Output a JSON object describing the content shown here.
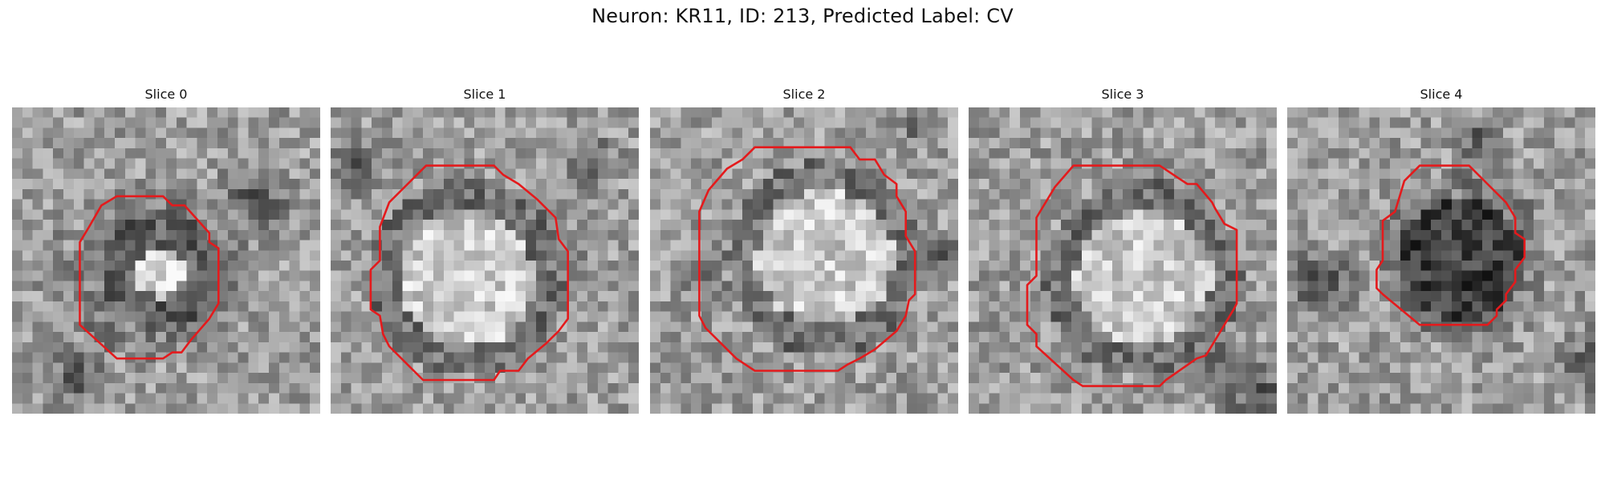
{
  "figure": {
    "title": "Neuron: KR11, ID: 213, Predicted Label: CV"
  },
  "contour_color": "#e41a1c",
  "colormap": "grayscale",
  "panels": [
    {
      "title": "Slice 0",
      "center_brightness": "mixed",
      "contour": [
        [
          0.34,
          0.29
        ],
        [
          0.49,
          0.29
        ],
        [
          0.52,
          0.32
        ],
        [
          0.56,
          0.32
        ],
        [
          0.64,
          0.41
        ],
        [
          0.64,
          0.44
        ],
        [
          0.67,
          0.46
        ],
        [
          0.67,
          0.64
        ],
        [
          0.64,
          0.69
        ],
        [
          0.58,
          0.76
        ],
        [
          0.55,
          0.8
        ],
        [
          0.52,
          0.8
        ],
        [
          0.49,
          0.82
        ],
        [
          0.34,
          0.82
        ],
        [
          0.22,
          0.71
        ],
        [
          0.22,
          0.44
        ],
        [
          0.25,
          0.39
        ],
        [
          0.29,
          0.32
        ]
      ]
    },
    {
      "title": "Slice 1",
      "center_brightness": "bright",
      "contour": [
        [
          0.31,
          0.19
        ],
        [
          0.53,
          0.19
        ],
        [
          0.56,
          0.22
        ],
        [
          0.61,
          0.25
        ],
        [
          0.67,
          0.3
        ],
        [
          0.73,
          0.36
        ],
        [
          0.74,
          0.43
        ],
        [
          0.77,
          0.47
        ],
        [
          0.77,
          0.69
        ],
        [
          0.74,
          0.73
        ],
        [
          0.7,
          0.77
        ],
        [
          0.64,
          0.82
        ],
        [
          0.61,
          0.86
        ],
        [
          0.55,
          0.86
        ],
        [
          0.53,
          0.89
        ],
        [
          0.3,
          0.89
        ],
        [
          0.25,
          0.84
        ],
        [
          0.19,
          0.78
        ],
        [
          0.17,
          0.74
        ],
        [
          0.16,
          0.68
        ],
        [
          0.13,
          0.66
        ],
        [
          0.13,
          0.53
        ],
        [
          0.16,
          0.5
        ],
        [
          0.16,
          0.39
        ],
        [
          0.19,
          0.31
        ],
        [
          0.25,
          0.25
        ]
      ]
    },
    {
      "title": "Slice 2",
      "center_brightness": "bright",
      "contour": [
        [
          0.34,
          0.13
        ],
        [
          0.65,
          0.13
        ],
        [
          0.68,
          0.17
        ],
        [
          0.73,
          0.17
        ],
        [
          0.76,
          0.22
        ],
        [
          0.8,
          0.25
        ],
        [
          0.8,
          0.29
        ],
        [
          0.83,
          0.34
        ],
        [
          0.83,
          0.42
        ],
        [
          0.86,
          0.47
        ],
        [
          0.86,
          0.61
        ],
        [
          0.84,
          0.63
        ],
        [
          0.83,
          0.68
        ],
        [
          0.8,
          0.73
        ],
        [
          0.73,
          0.79
        ],
        [
          0.68,
          0.82
        ],
        [
          0.64,
          0.84
        ],
        [
          0.61,
          0.86
        ],
        [
          0.34,
          0.86
        ],
        [
          0.28,
          0.82
        ],
        [
          0.22,
          0.76
        ],
        [
          0.18,
          0.72
        ],
        [
          0.16,
          0.68
        ],
        [
          0.16,
          0.34
        ],
        [
          0.19,
          0.27
        ],
        [
          0.25,
          0.2
        ],
        [
          0.3,
          0.17
        ]
      ]
    },
    {
      "title": "Slice 3",
      "center_brightness": "bright",
      "contour": [
        [
          0.34,
          0.19
        ],
        [
          0.62,
          0.19
        ],
        [
          0.68,
          0.23
        ],
        [
          0.71,
          0.25
        ],
        [
          0.74,
          0.25
        ],
        [
          0.79,
          0.31
        ],
        [
          0.8,
          0.33
        ],
        [
          0.83,
          0.38
        ],
        [
          0.87,
          0.4
        ],
        [
          0.87,
          0.64
        ],
        [
          0.86,
          0.66
        ],
        [
          0.83,
          0.71
        ],
        [
          0.8,
          0.76
        ],
        [
          0.77,
          0.81
        ],
        [
          0.74,
          0.82
        ],
        [
          0.64,
          0.89
        ],
        [
          0.62,
          0.91
        ],
        [
          0.37,
          0.91
        ],
        [
          0.34,
          0.89
        ],
        [
          0.22,
          0.78
        ],
        [
          0.22,
          0.74
        ],
        [
          0.19,
          0.71
        ],
        [
          0.19,
          0.58
        ],
        [
          0.22,
          0.55
        ],
        [
          0.22,
          0.36
        ],
        [
          0.28,
          0.26
        ]
      ]
    },
    {
      "title": "Slice 4",
      "center_brightness": "dark",
      "contour": [
        [
          0.43,
          0.19
        ],
        [
          0.59,
          0.19
        ],
        [
          0.65,
          0.25
        ],
        [
          0.71,
          0.31
        ],
        [
          0.74,
          0.36
        ],
        [
          0.74,
          0.41
        ],
        [
          0.77,
          0.43
        ],
        [
          0.77,
          0.49
        ],
        [
          0.74,
          0.53
        ],
        [
          0.74,
          0.57
        ],
        [
          0.71,
          0.61
        ],
        [
          0.71,
          0.63
        ],
        [
          0.68,
          0.66
        ],
        [
          0.68,
          0.68
        ],
        [
          0.65,
          0.71
        ],
        [
          0.61,
          0.71
        ],
        [
          0.59,
          0.71
        ],
        [
          0.43,
          0.71
        ],
        [
          0.31,
          0.61
        ],
        [
          0.29,
          0.59
        ],
        [
          0.29,
          0.53
        ],
        [
          0.31,
          0.5
        ],
        [
          0.31,
          0.37
        ],
        [
          0.35,
          0.34
        ],
        [
          0.38,
          0.24
        ]
      ]
    }
  ]
}
